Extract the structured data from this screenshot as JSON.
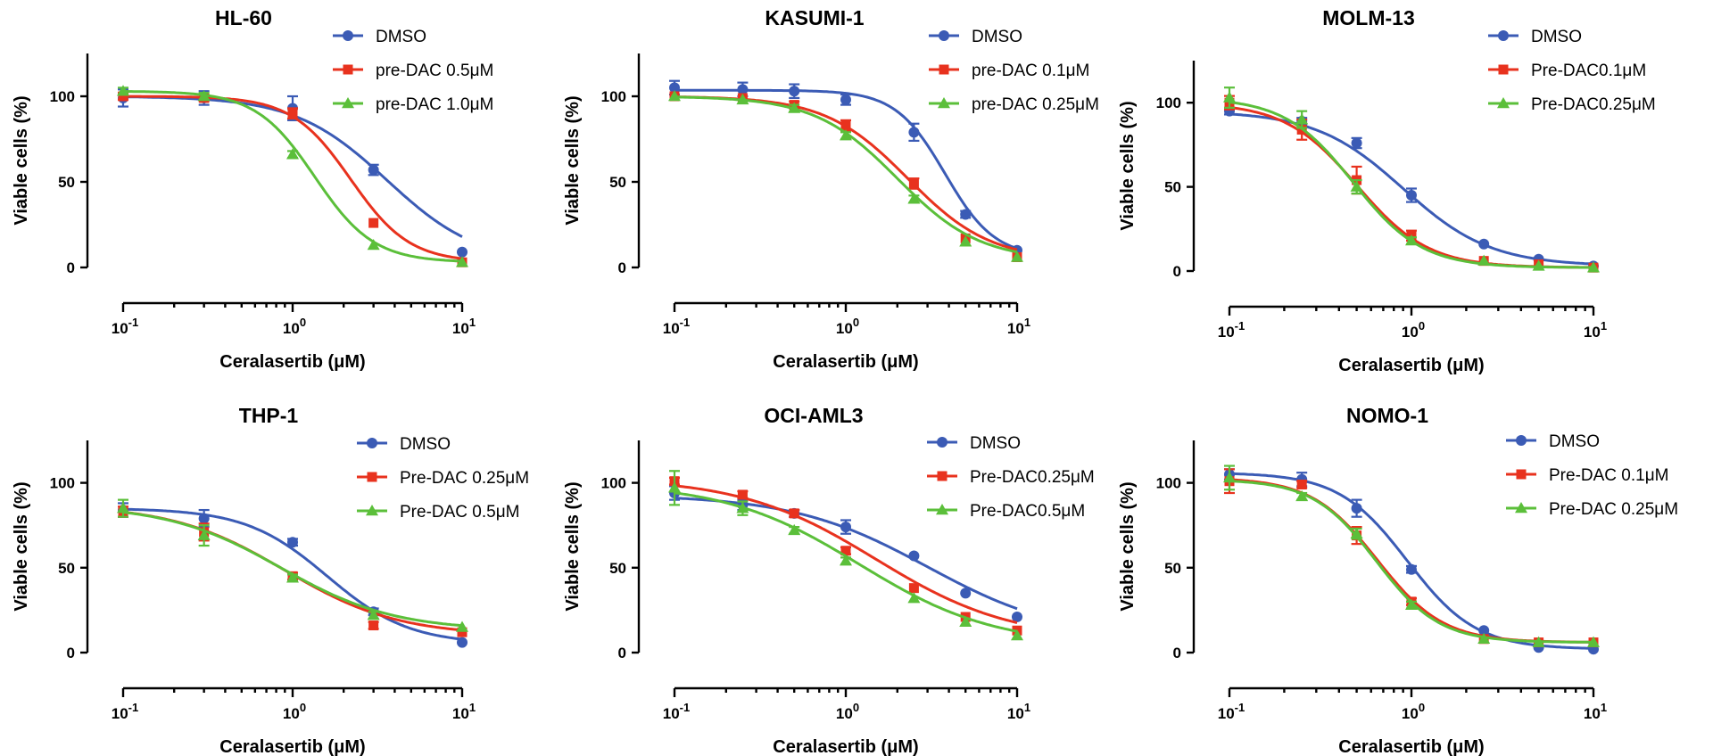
{
  "colors": {
    "dmso": "#3b5bb5",
    "low": "#e8321e",
    "high": "#5bbf3a"
  },
  "chart_data": [
    {
      "type": "line",
      "title": "HL-60",
      "xlabel": "Ceralasertib (μM)",
      "ylabel": "Viable cells (%)",
      "xscale": "log",
      "xlim": [
        0.1,
        10
      ],
      "ylim": [
        0,
        125
      ],
      "yticks": [
        0,
        50,
        100
      ],
      "xticks": [
        "10-1",
        "100",
        "101"
      ],
      "legend": "top-right",
      "series": [
        {
          "name": "DMSO",
          "color": "dmso",
          "marker": "circle",
          "x": [
            0.1,
            0.3,
            1,
            3,
            10
          ],
          "y": [
            99,
            99,
            93,
            57,
            9
          ],
          "err": [
            5,
            4,
            7,
            3,
            1
          ],
          "fit": {
            "top": 100,
            "bottom": 2,
            "ic50": 3.6,
            "hill": 1.6
          }
        },
        {
          "name": "pre-DAC 0.5μM",
          "color": "low",
          "marker": "square",
          "x": [
            0.1,
            0.3,
            1,
            3,
            10
          ],
          "y": [
            100,
            99,
            90,
            26,
            3
          ],
          "err": [
            2,
            2,
            3,
            1,
            1
          ],
          "fit": {
            "top": 100,
            "bottom": 3,
            "ic50": 2.2,
            "hill": 2.5
          }
        },
        {
          "name": "pre-DAC 1.0μM",
          "color": "high",
          "marker": "triangle",
          "x": [
            0.1,
            0.3,
            1,
            3,
            10
          ],
          "y": [
            103,
            100,
            66,
            13,
            3
          ],
          "err": [
            2,
            2,
            2,
            1,
            1
          ],
          "fit": {
            "top": 103,
            "bottom": 3,
            "ic50": 1.35,
            "hill": 2.5
          }
        }
      ]
    },
    {
      "type": "line",
      "title": "KASUMI-1",
      "xlabel": "Ceralasertib (μM)",
      "ylabel": "Viable cells (%)",
      "xscale": "log",
      "xlim": [
        0.1,
        10
      ],
      "ylim": [
        0,
        125
      ],
      "yticks": [
        0,
        50,
        100
      ],
      "xticks": [
        "10-1",
        "100",
        "101"
      ],
      "legend": "top-right",
      "series": [
        {
          "name": "DMSO",
          "color": "dmso",
          "marker": "circle",
          "x": [
            0.1,
            0.25,
            0.5,
            1,
            2.5,
            5,
            10
          ],
          "y": [
            105,
            104,
            103,
            98,
            79,
            31,
            10
          ],
          "err": [
            4,
            4,
            4,
            3,
            5,
            2,
            1
          ],
          "fit": {
            "top": 103.5,
            "bottom": 6,
            "ic50": 3.8,
            "hill": 3.0
          }
        },
        {
          "name": "pre-DAC 0.1μM",
          "color": "low",
          "marker": "square",
          "x": [
            0.1,
            0.25,
            0.5,
            1,
            2.5,
            5,
            10
          ],
          "y": [
            100,
            99,
            95,
            83,
            49,
            17,
            6
          ],
          "err": [
            1,
            1,
            2,
            3,
            3,
            1,
            1
          ],
          "fit": {
            "top": 100,
            "bottom": 4,
            "ic50": 2.3,
            "hill": 1.8
          }
        },
        {
          "name": "pre-DAC 0.25μM",
          "color": "high",
          "marker": "triangle",
          "x": [
            0.1,
            0.25,
            0.5,
            1,
            2.5,
            5,
            10
          ],
          "y": [
            100,
            98,
            93,
            77,
            40,
            15,
            6
          ],
          "err": [
            1,
            1,
            2,
            2,
            2,
            1,
            1
          ],
          "fit": {
            "top": 100,
            "bottom": 4,
            "ic50": 2.0,
            "hill": 1.8
          }
        }
      ]
    },
    {
      "type": "line",
      "title": "MOLM-13",
      "xlabel": "Ceralasertib (μM)",
      "ylabel": "Viable cells (%)",
      "xscale": "log",
      "xlim": [
        0.1,
        10
      ],
      "ylim": [
        0,
        125
      ],
      "yticks": [
        0,
        50,
        100
      ],
      "xticks": [
        "10-1",
        "100",
        "101"
      ],
      "legend": "top-right",
      "series": [
        {
          "name": "DMSO",
          "color": "dmso",
          "marker": "circle",
          "x": [
            0.1,
            0.25,
            0.5,
            1,
            2.5,
            5,
            10
          ],
          "y": [
            95,
            89,
            76,
            45,
            16,
            7,
            3
          ],
          "err": [
            2,
            2,
            3,
            4,
            1,
            1,
            1
          ],
          "fit": {
            "top": 95,
            "bottom": 3,
            "ic50": 0.9,
            "hill": 1.8
          }
        },
        {
          "name": "Pre-DAC0.1μM",
          "color": "low",
          "marker": "square",
          "x": [
            0.1,
            0.25,
            0.5,
            1,
            2.5,
            5,
            10
          ],
          "y": [
            100,
            84,
            54,
            21,
            6,
            4,
            2
          ],
          "err": [
            4,
            6,
            8,
            3,
            1,
            1,
            1
          ],
          "fit": {
            "top": 100,
            "bottom": 2,
            "ic50": 0.5,
            "hill": 2.2
          }
        },
        {
          "name": "Pre-DAC0.25μM",
          "color": "high",
          "marker": "triangle",
          "x": [
            0.1,
            0.25,
            0.5,
            1,
            2.5,
            5,
            10
          ],
          "y": [
            103,
            90,
            50,
            18,
            6,
            3,
            2
          ],
          "err": [
            6,
            5,
            4,
            2,
            1,
            1,
            1
          ],
          "fit": {
            "top": 103,
            "bottom": 2,
            "ic50": 0.48,
            "hill": 2.3
          }
        }
      ]
    },
    {
      "type": "line",
      "title": "THP-1",
      "xlabel": "Ceralasertib (μM)",
      "ylabel": "Viable cells (%)",
      "xscale": "log",
      "xlim": [
        0.1,
        10
      ],
      "ylim": [
        0,
        125
      ],
      "yticks": [
        0,
        50,
        100
      ],
      "xticks": [
        "10-1",
        "100",
        "101"
      ],
      "legend": "top-right",
      "series": [
        {
          "name": "DMSO",
          "color": "dmso",
          "marker": "circle",
          "x": [
            0.1,
            0.3,
            1,
            3,
            10
          ],
          "y": [
            84,
            79,
            65,
            24,
            6
          ],
          "err": [
            4,
            5,
            2,
            2,
            1
          ],
          "fit": {
            "top": 85,
            "bottom": 5,
            "ic50": 1.6,
            "hill": 1.8
          }
        },
        {
          "name": "Pre-DAC 0.25μM",
          "color": "low",
          "marker": "square",
          "x": [
            0.1,
            0.3,
            1,
            3,
            10
          ],
          "y": [
            83,
            71,
            45,
            16,
            12
          ],
          "err": [
            3,
            5,
            2,
            2,
            1
          ],
          "fit": {
            "top": 87,
            "bottom": 10,
            "ic50": 0.9,
            "hill": 1.3
          }
        },
        {
          "name": "Pre-DAC 0.5μM",
          "color": "high",
          "marker": "triangle",
          "x": [
            0.1,
            0.3,
            1,
            3,
            10
          ],
          "y": [
            85,
            69,
            44,
            22,
            15
          ],
          "err": [
            5,
            6,
            2,
            2,
            1
          ],
          "fit": {
            "top": 87,
            "bottom": 13,
            "ic50": 0.85,
            "hill": 1.3
          }
        }
      ]
    },
    {
      "type": "line",
      "title": "OCI-AML3",
      "xlabel": "Ceralasertib (μM)",
      "ylabel": "Viable cells (%)",
      "xscale": "log",
      "xlim": [
        0.1,
        10
      ],
      "ylim": [
        0,
        125
      ],
      "yticks": [
        0,
        50,
        100
      ],
      "xticks": [
        "10-1",
        "100",
        "101"
      ],
      "legend": "top-right",
      "series": [
        {
          "name": "DMSO",
          "color": "dmso",
          "marker": "circle",
          "x": [
            0.1,
            0.25,
            0.5,
            1,
            2.5,
            5,
            10
          ],
          "y": [
            94,
            87,
            82,
            74,
            57,
            35,
            21
          ],
          "err": [
            4,
            3,
            2,
            4,
            1,
            1,
            1
          ],
          "fit": {
            "top": 93,
            "bottom": 8,
            "ic50": 3.0,
            "hill": 1.1
          }
        },
        {
          "name": "Pre-DAC0.25μM",
          "color": "low",
          "marker": "square",
          "x": [
            0.1,
            0.25,
            0.5,
            1,
            2.5,
            5,
            10
          ],
          "y": [
            101,
            93,
            82,
            60,
            38,
            21,
            13
          ],
          "err": [
            2,
            2,
            2,
            2,
            1,
            1,
            1
          ],
          "fit": {
            "top": 103,
            "bottom": 7,
            "ic50": 1.5,
            "hill": 1.1
          }
        },
        {
          "name": "Pre-DAC0.5μM",
          "color": "high",
          "marker": "triangle",
          "x": [
            0.1,
            0.25,
            0.5,
            1,
            2.5,
            5,
            10
          ],
          "y": [
            97,
            85,
            72,
            54,
            32,
            18,
            10
          ],
          "err": [
            10,
            4,
            2,
            2,
            1,
            1,
            1
          ],
          "fit": {
            "top": 100,
            "bottom": 4,
            "ic50": 1.2,
            "hill": 1.1
          }
        }
      ]
    },
    {
      "type": "line",
      "title": "NOMO-1",
      "xlabel": "Ceralasertib (μM)",
      "ylabel": "Viable cells (%)",
      "xscale": "log",
      "xlim": [
        0.1,
        10
      ],
      "ylim": [
        0,
        125
      ],
      "yticks": [
        0,
        50,
        100
      ],
      "xticks": [
        "10-1",
        "100",
        "101"
      ],
      "legend": "top-right",
      "series": [
        {
          "name": "DMSO",
          "color": "dmso",
          "marker": "circle",
          "x": [
            0.1,
            0.25,
            0.5,
            1,
            2.5,
            5,
            10
          ],
          "y": [
            105,
            102,
            85,
            49,
            13,
            3,
            2
          ],
          "err": [
            3,
            4,
            5,
            2,
            1,
            1,
            1
          ],
          "fit": {
            "top": 106,
            "bottom": 2,
            "ic50": 0.95,
            "hill": 2.3
          }
        },
        {
          "name": "Pre-DAC 0.1μM",
          "color": "low",
          "marker": "square",
          "x": [
            0.1,
            0.25,
            0.5,
            1,
            2.5,
            5,
            10
          ],
          "y": [
            101,
            99,
            69,
            30,
            8,
            6,
            6
          ],
          "err": [
            7,
            2,
            5,
            2,
            1,
            1,
            1
          ],
          "fit": {
            "top": 103,
            "bottom": 6,
            "ic50": 0.65,
            "hill": 2.4
          }
        },
        {
          "name": "Pre-DAC 0.25μM",
          "color": "high",
          "marker": "triangle",
          "x": [
            0.1,
            0.25,
            0.5,
            1,
            2.5,
            5,
            10
          ],
          "y": [
            103,
            92,
            70,
            28,
            8,
            6,
            6
          ],
          "err": [
            7,
            2,
            3,
            2,
            1,
            1,
            1
          ],
          "fit": {
            "top": 102,
            "bottom": 6,
            "ic50": 0.64,
            "hill": 2.5
          }
        }
      ]
    }
  ]
}
